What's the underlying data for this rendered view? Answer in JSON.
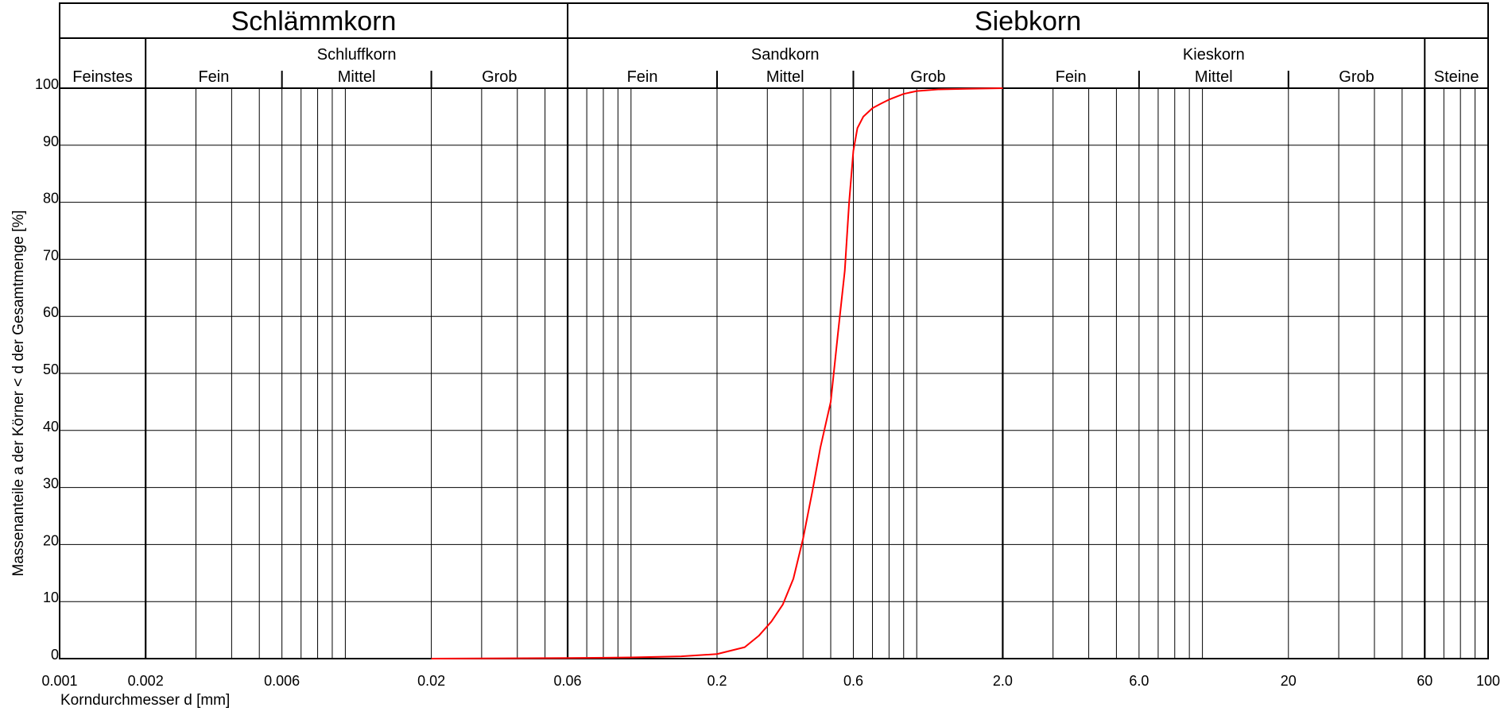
{
  "chart_data": {
    "type": "line",
    "xscale": "log",
    "xlim": [
      0.001,
      100
    ],
    "ylim": [
      0,
      100
    ],
    "xlabel": "Korndurchmesser d [mm]",
    "ylabel": "Massenanteile a der Körner < d der Gesamtmenge [%]",
    "x_tick_values": [
      0.001,
      0.002,
      0.006,
      0.02,
      0.06,
      0.2,
      0.6,
      2.0,
      6.0,
      20,
      60,
      100
    ],
    "x_tick_labels": [
      "0.001",
      "0.002",
      "0.006",
      "0.02",
      "0.06",
      "0.2",
      "0.6",
      "2.0",
      "6.0",
      "20",
      "60",
      "100"
    ],
    "y_tick_values": [
      0,
      10,
      20,
      30,
      40,
      50,
      60,
      70,
      80,
      90,
      100
    ],
    "y_tick_labels": [
      "0",
      "10",
      "20",
      "30",
      "40",
      "50",
      "60",
      "70",
      "80",
      "90",
      "100"
    ],
    "grid": true,
    "header": {
      "main_groups": [
        {
          "label": "Schlämmkorn",
          "from": 0.001,
          "to": 0.06
        },
        {
          "label": "Siebkorn",
          "from": 0.06,
          "to": 100
        }
      ],
      "fractions": [
        {
          "label": "Feinstes",
          "from": 0.001,
          "to": 0.002
        },
        {
          "label": "Schluffkorn",
          "from": 0.002,
          "to": 0.06
        },
        {
          "label": "Sandkorn",
          "from": 0.06,
          "to": 2.0
        },
        {
          "label": "Kieskorn",
          "from": 2.0,
          "to": 60
        },
        {
          "label": "Steine",
          "from": 60,
          "to": 100
        }
      ],
      "subfractions": [
        {
          "label": "Fein",
          "from": 0.002,
          "to": 0.006
        },
        {
          "label": "Mittel",
          "from": 0.006,
          "to": 0.02
        },
        {
          "label": "Grob",
          "from": 0.02,
          "to": 0.06
        },
        {
          "label": "Fein",
          "from": 0.06,
          "to": 0.2
        },
        {
          "label": "Mittel",
          "from": 0.2,
          "to": 0.6
        },
        {
          "label": "Grob",
          "from": 0.6,
          "to": 2.0
        },
        {
          "label": "Fein",
          "from": 2.0,
          "to": 6.0
        },
        {
          "label": "Mittel",
          "from": 6.0,
          "to": 20
        },
        {
          "label": "Grob",
          "from": 20,
          "to": 60
        }
      ]
    },
    "series": [
      {
        "color": "#ff0000",
        "x": [
          0.02,
          0.06,
          0.1,
          0.15,
          0.2,
          0.25,
          0.28,
          0.31,
          0.34,
          0.37,
          0.4,
          0.43,
          0.46,
          0.5,
          0.53,
          0.56,
          0.58,
          0.6,
          0.62,
          0.65,
          0.7,
          0.75,
          0.8,
          0.9,
          1.0,
          1.2,
          1.5,
          2.0
        ],
        "y": [
          0,
          0.1,
          0.2,
          0.4,
          0.8,
          2,
          4,
          6.5,
          9.5,
          14,
          21,
          29,
          37,
          45,
          57,
          68,
          80,
          89,
          93,
          95,
          96.5,
          97.3,
          98,
          99,
          99.5,
          99.8,
          99.9,
          100
        ]
      }
    ],
    "colors": {
      "curve": "#ff0000",
      "grid": "#000000",
      "background": "#ffffff"
    }
  }
}
